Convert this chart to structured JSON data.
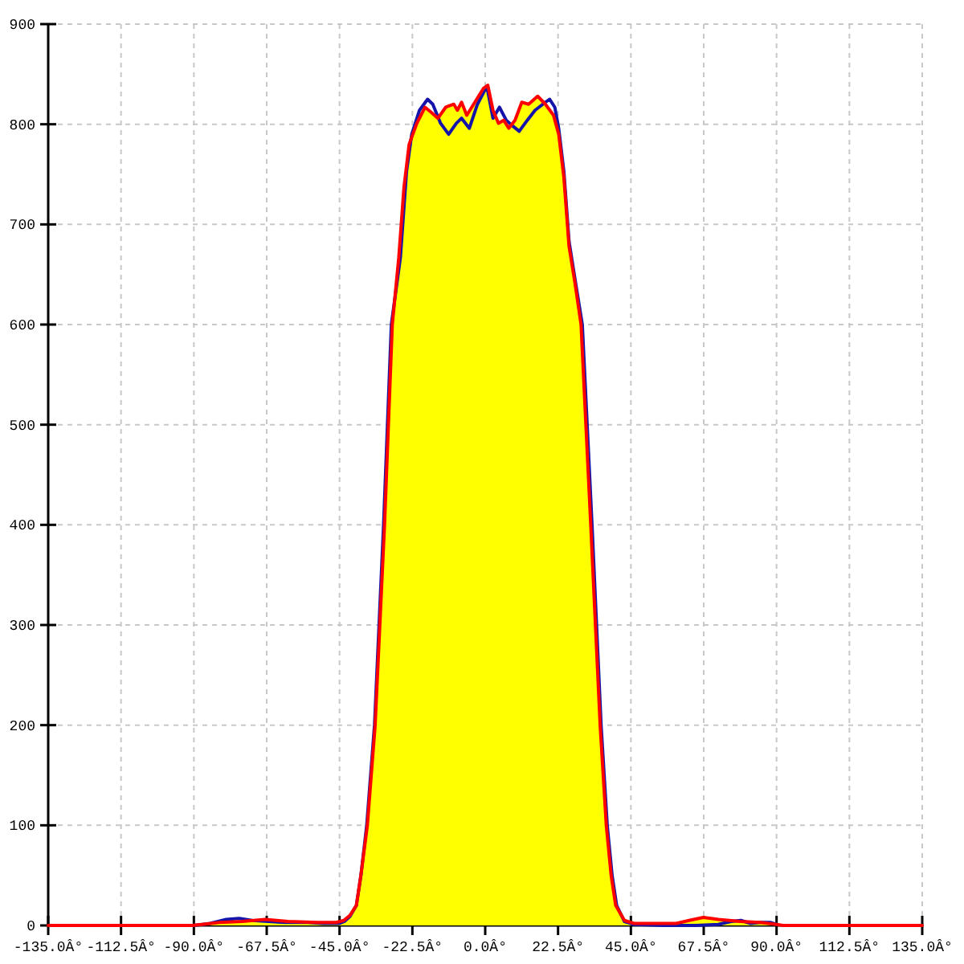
{
  "chart_data": {
    "type": "line",
    "xlim": [
      -135,
      135
    ],
    "xticks": [
      {
        "value": -135,
        "label": "-135.0Â°"
      },
      {
        "value": -112.5,
        "label": "-112.5Â°"
      },
      {
        "value": -90,
        "label": "-90.0Â°"
      },
      {
        "value": -67.5,
        "label": "-67.5Â°"
      },
      {
        "value": -45,
        "label": "-45.0Â°"
      },
      {
        "value": -22.5,
        "label": "-22.5Â°"
      },
      {
        "value": 0,
        "label": "0.0Â°"
      },
      {
        "value": 22.5,
        "label": "22.5Â°"
      },
      {
        "value": 45,
        "label": "45.0Â°"
      },
      {
        "value": 67.5,
        "label": "67.5Â°"
      },
      {
        "value": 90,
        "label": "90.0Â°"
      },
      {
        "value": 112.5,
        "label": "112.5Â°"
      },
      {
        "value": 135,
        "label": "135.0Â°"
      }
    ],
    "ylim": [
      0,
      900
    ],
    "yticks": [
      0,
      100,
      200,
      300,
      400,
      500,
      600,
      700,
      800,
      900
    ],
    "grid": true,
    "series": [
      {
        "type": "area",
        "color": "#ffff00",
        "x": [
          -90.5,
          -82,
          -75,
          -68,
          -61,
          -52,
          -46,
          -43.7,
          -41.8,
          -39.8,
          -38.4,
          -36.4,
          -34,
          -31.1,
          -28.7,
          -26.7,
          -25.1,
          -23.5,
          -21.1,
          -18.6,
          -16.7,
          -14.6,
          -12.2,
          -9.7,
          -8.6,
          -7.3,
          -5.7,
          -3.2,
          -0.5,
          0.8,
          2.4,
          4.1,
          5.7,
          7.3,
          9.2,
          11.3,
          13.4,
          16.2,
          18.6,
          21.1,
          22.7,
          24.3,
          25.9,
          27.8,
          29.6,
          32.6,
          35.5,
          37.4,
          38.9,
          40.3,
          43,
          46,
          52,
          59,
          63,
          67.4,
          72,
          78.7,
          85,
          90,
          92
        ],
        "values": [
          0,
          3,
          4,
          6,
          4,
          3,
          3,
          5,
          10,
          20,
          50,
          100,
          200,
          400,
          600,
          667,
          737,
          780,
          801,
          817,
          812,
          806,
          817,
          820,
          814,
          822,
          809,
          822,
          836,
          839,
          814,
          801,
          804,
          796,
          804,
          822,
          820,
          828,
          820,
          809,
          790,
          747,
          678,
          640,
          600,
          400,
          200,
          100,
          50,
          20,
          5,
          2,
          2,
          2,
          5,
          8,
          6,
          4,
          3,
          1,
          0
        ]
      },
      {
        "color": "#1414aa",
        "x": [
          -90,
          -85,
          -80,
          -76,
          -72,
          -67,
          -62,
          -55,
          -50,
          -45,
          -43.5,
          -41.8,
          -39.8,
          -38.4,
          -36.6,
          -34.2,
          -31.4,
          -29,
          -26.2,
          -24.3,
          -22.7,
          -20.3,
          -17.8,
          -16.2,
          -13.8,
          -11.3,
          -8.9,
          -7.3,
          -4.9,
          -2.4,
          0.5,
          2.4,
          4.4,
          6.5,
          8.6,
          10.5,
          13,
          15.4,
          17.8,
          19.9,
          21.5,
          22.7,
          24.3,
          25.9,
          28,
          30,
          33,
          35.8,
          37.7,
          39.2,
          40.6,
          43,
          46,
          55,
          65,
          72,
          76,
          79,
          82,
          85,
          88,
          90
        ],
        "values": [
          0,
          2,
          6,
          7,
          5,
          4,
          3,
          3,
          2,
          2,
          4,
          9,
          20,
          50,
          100,
          200,
          400,
          600,
          667,
          753,
          790,
          814,
          825,
          820,
          801,
          790,
          801,
          806,
          796,
          820,
          838,
          806,
          817,
          804,
          798,
          793,
          804,
          814,
          820,
          825,
          817,
          796,
          753,
          683,
          640,
          600,
          400,
          200,
          100,
          50,
          20,
          4,
          1,
          0,
          0,
          1,
          4,
          5,
          2,
          3,
          3,
          1
        ]
      },
      {
        "color": "#ff0000",
        "x": [
          -135,
          -90.5,
          -82,
          -75,
          -68,
          -61,
          -52,
          -46,
          -43.7,
          -41.8,
          -39.8,
          -38.4,
          -36.4,
          -34,
          -31.1,
          -28.7,
          -26.7,
          -25.1,
          -23.5,
          -21.1,
          -18.6,
          -16.7,
          -14.6,
          -12.2,
          -9.7,
          -8.6,
          -7.3,
          -5.7,
          -3.2,
          -0.5,
          0.8,
          2.4,
          4.1,
          5.7,
          7.3,
          9.2,
          11.3,
          13.4,
          16.2,
          18.6,
          21.1,
          22.7,
          24.3,
          25.9,
          27.8,
          29.6,
          32.6,
          35.5,
          37.4,
          38.9,
          40.3,
          43,
          46,
          52,
          59,
          63,
          67.4,
          72,
          78.7,
          85,
          90,
          92,
          135
        ],
        "values": [
          0,
          0,
          3,
          4,
          6,
          4,
          3,
          3,
          5,
          10,
          20,
          50,
          100,
          200,
          400,
          600,
          667,
          737,
          780,
          801,
          817,
          812,
          806,
          817,
          820,
          814,
          822,
          809,
          822,
          836,
          839,
          814,
          801,
          804,
          796,
          804,
          822,
          820,
          828,
          820,
          809,
          790,
          747,
          678,
          640,
          600,
          400,
          200,
          100,
          50,
          20,
          5,
          2,
          2,
          2,
          5,
          8,
          6,
          4,
          3,
          1,
          0,
          0
        ]
      }
    ]
  }
}
